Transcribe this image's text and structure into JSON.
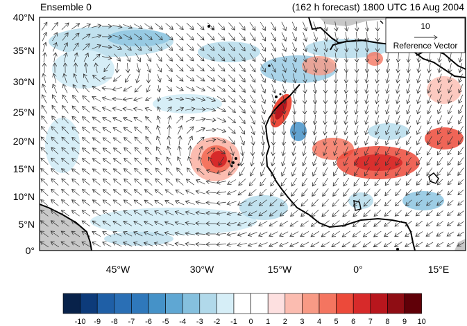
{
  "titles": {
    "left": "Ensemble 0",
    "right": "(162 h forecast) 1800 UTC 16 Aug 2004"
  },
  "axes": {
    "lat_ticks": [
      "40°N",
      "35°N",
      "30°N",
      "25°N",
      "20°N",
      "15°N",
      "10°N",
      "5°N",
      "0°"
    ],
    "lon_ticks": [
      "45°W",
      "30°W",
      "15°W",
      "0°",
      "15°E"
    ],
    "lon_range_deg": [
      -57,
      19
    ],
    "lat_range_deg": [
      0,
      40
    ]
  },
  "reference_vector": {
    "value": "10",
    "label": "Reference Vector"
  },
  "colorbar": {
    "labels": [
      "-10",
      "-9",
      "-8",
      "-7",
      "-6",
      "-5",
      "-4",
      "-3",
      "-2",
      "-1",
      "0",
      "1",
      "2",
      "3",
      "4",
      "5",
      "6",
      "7",
      "8",
      "9",
      "10"
    ],
    "colors": [
      "#08224a",
      "#0d3b7a",
      "#1f5fa6",
      "#2a6fb5",
      "#2f78bb",
      "#4592c8",
      "#5fa7d3",
      "#85c0de",
      "#b1d9ea",
      "#d6eef7",
      "#ffffff",
      "#ffffff",
      "#fde0e0",
      "#fbbcb0",
      "#f89a85",
      "#f47560",
      "#ec4a3a",
      "#d72a2a",
      "#b8161d",
      "#8f0d14",
      "#600008"
    ]
  },
  "colors": {
    "land": "#c8c8c8",
    "ocean": "#ffffff",
    "coast": "#000000",
    "vector": "#333333"
  }
}
